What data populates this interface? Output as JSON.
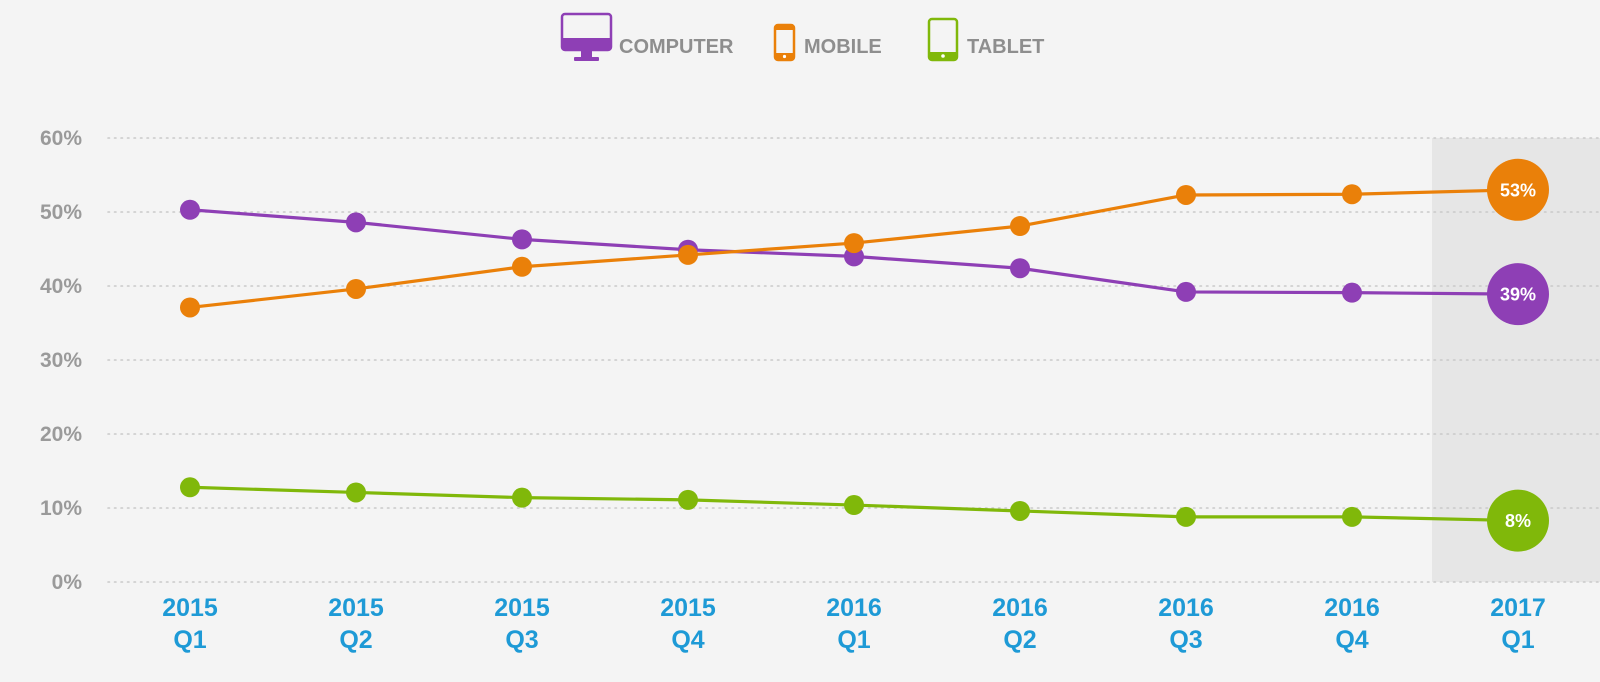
{
  "chart_data": {
    "type": "line",
    "title": "",
    "xlabel": "",
    "ylabel": "",
    "ylim": [
      0,
      60
    ],
    "yticks": [
      "0%",
      "10%",
      "20%",
      "30%",
      "40%",
      "50%",
      "60%"
    ],
    "categories": [
      [
        "2015",
        "Q1"
      ],
      [
        "2015",
        "Q2"
      ],
      [
        "2015",
        "Q3"
      ],
      [
        "2015",
        "Q4"
      ],
      [
        "2016",
        "Q1"
      ],
      [
        "2016",
        "Q2"
      ],
      [
        "2016",
        "Q3"
      ],
      [
        "2016",
        "Q4"
      ],
      [
        "2017",
        "Q1"
      ]
    ],
    "grid": true,
    "legend": "top-center",
    "highlight_last_category": true,
    "series": [
      {
        "name": "COMPUTER",
        "icon": "monitor-icon",
        "color": "#8e3fb5",
        "values": [
          50.3,
          48.6,
          46.3,
          44.9,
          44.0,
          42.4,
          39.2,
          39.1,
          38.9
        ],
        "end_label": "39%"
      },
      {
        "name": "MOBILE",
        "icon": "smartphone-icon",
        "color": "#ea8009",
        "values": [
          37.1,
          39.6,
          42.6,
          44.2,
          45.8,
          48.1,
          52.3,
          52.4,
          53.0
        ],
        "end_label": "53%"
      },
      {
        "name": "TABLET",
        "icon": "tablet-icon",
        "color": "#80b80a",
        "values": [
          12.8,
          12.1,
          11.4,
          11.1,
          10.4,
          9.6,
          8.8,
          8.8,
          8.3
        ],
        "end_label": "8%"
      }
    ],
    "colors": {
      "xtick": "#1e9ad6",
      "ytick": "#9a9a9a",
      "grid": "#c9c9c9",
      "highlight": "#e6e6e6"
    }
  }
}
